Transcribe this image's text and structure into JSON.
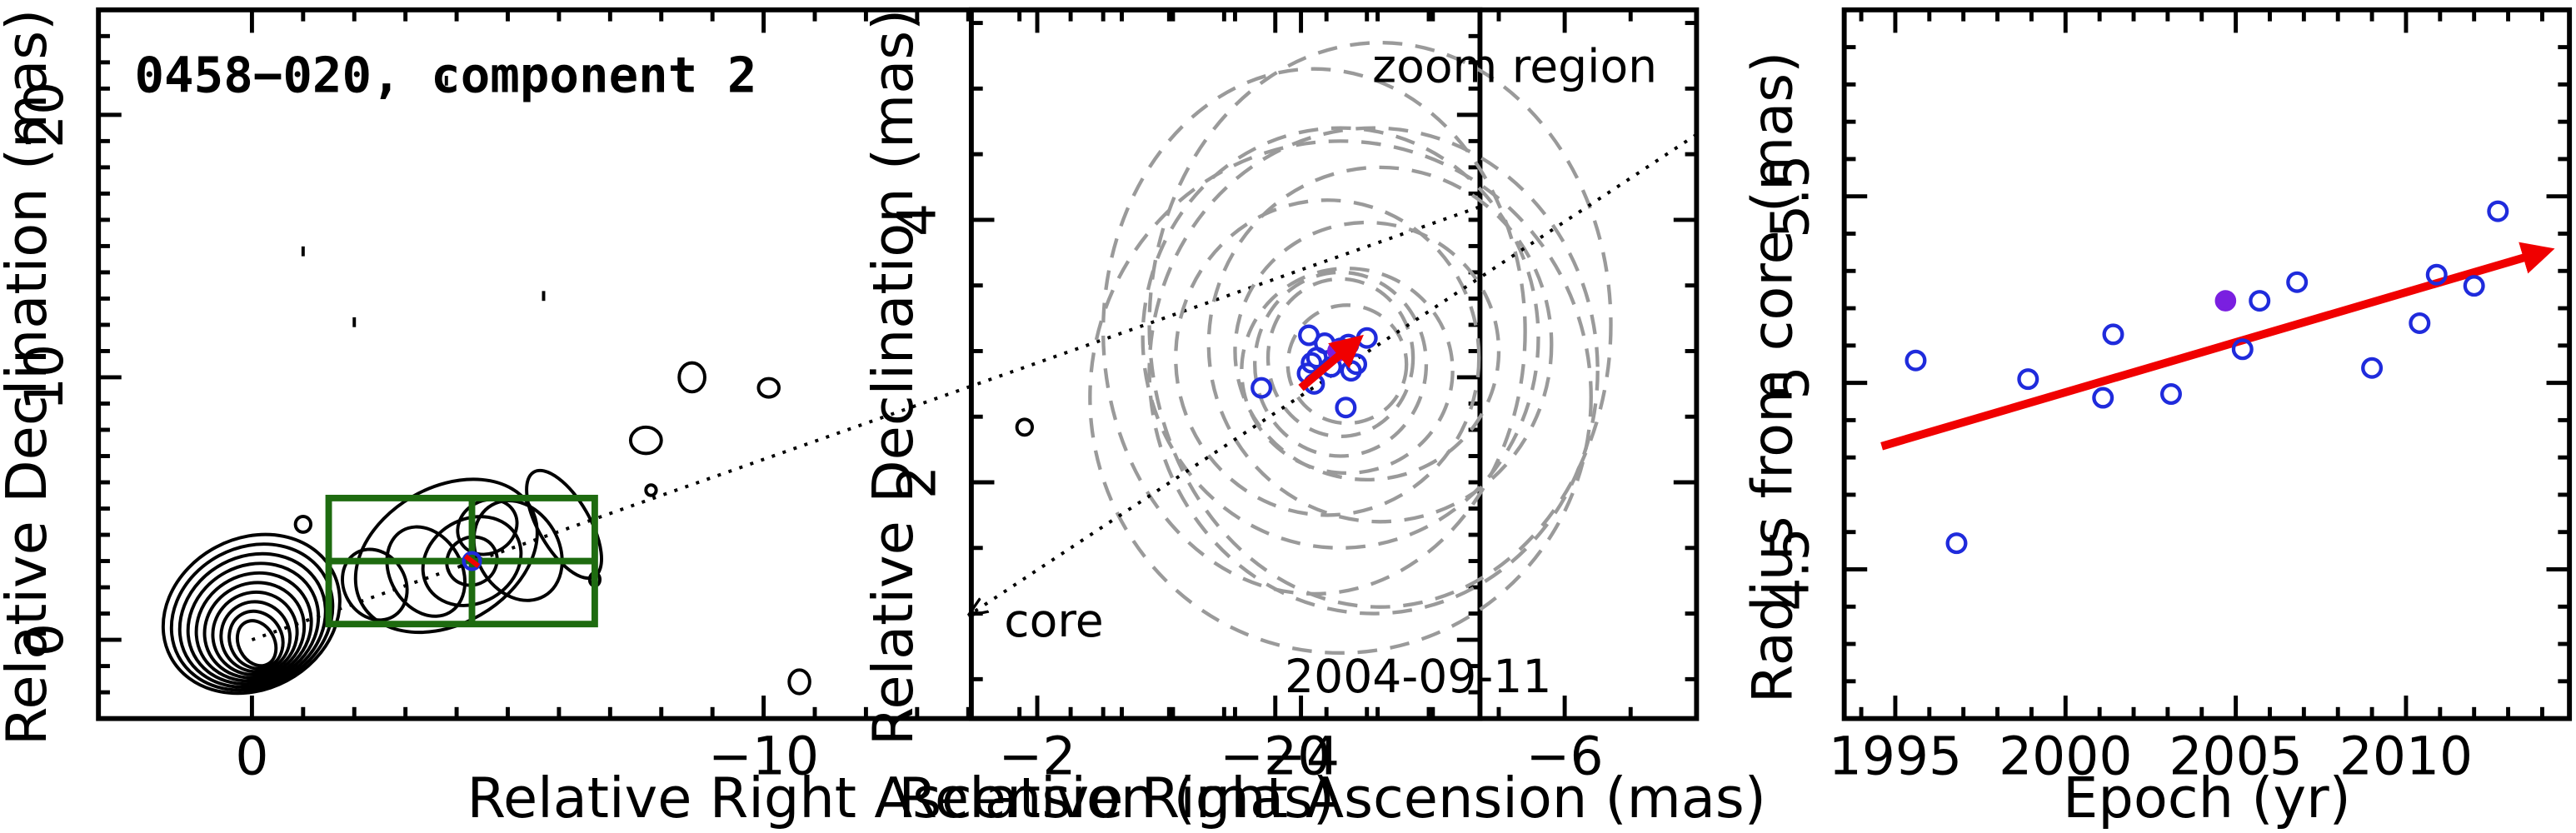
{
  "chart_data": [
    {
      "type": "contour",
      "title": "0458−020, component 2",
      "xlabel": "Relative Right Ascension (mas)",
      "ylabel": "Relative Declination (mas)",
      "xlim": [
        3,
        -24
      ],
      "ylim": [
        -3,
        24
      ],
      "xticks": [
        0,
        -10,
        -20
      ],
      "xtick_labels": [
        "0",
        "−10",
        "−20"
      ],
      "yticks": [
        0,
        10,
        20
      ],
      "ytick_labels": [
        "0",
        "10",
        "20"
      ],
      "annotation": "2004-09-11",
      "component_position": {
        "x": -4.3,
        "y": 3.0
      },
      "jet_direction_line": {
        "from": [
          0,
          0
        ],
        "to": [
          -24,
          16.5
        ]
      },
      "grid_boxes": [
        {
          "x": [
            -1.5,
            -6.7
          ],
          "y": [
            0.6,
            5.4
          ]
        },
        {
          "x": [
            -4.3,
            -4.3
          ],
          "y": [
            0.6,
            5.4
          ]
        },
        {
          "x": [
            -1.5,
            -6.7
          ],
          "y": [
            3.0,
            3.0
          ]
        }
      ],
      "colors": {
        "contours": "#000000",
        "boxes": "#1e6b10",
        "marker": "#1f2bdc",
        "vector": "#f00000"
      }
    },
    {
      "type": "scatter",
      "xlabel": "Relative Right Ascension (mas)",
      "ylabel": "Relative Declination (mas)",
      "xlim": [
        -1.5,
        -7.0
      ],
      "ylim": [
        0.2,
        5.6
      ],
      "xticks": [
        -2,
        -4,
        -6
      ],
      "xtick_labels": [
        "−2",
        "−4",
        "−6"
      ],
      "yticks": [
        2,
        4
      ],
      "ytick_labels": [
        "2",
        "4"
      ],
      "annotations": [
        "zoom region",
        "core"
      ],
      "points": [
        {
          "x": -3.7,
          "y": 2.72
        },
        {
          "x": -4.05,
          "y": 2.83
        },
        {
          "x": -4.08,
          "y": 2.91
        },
        {
          "x": -4.12,
          "y": 2.95
        },
        {
          "x": -4.06,
          "y": 3.12
        },
        {
          "x": -4.1,
          "y": 2.75
        },
        {
          "x": -4.18,
          "y": 3.06
        },
        {
          "x": -4.23,
          "y": 2.88
        },
        {
          "x": -4.3,
          "y": 3.02
        },
        {
          "x": -4.36,
          "y": 3.05
        },
        {
          "x": -4.38,
          "y": 2.85
        },
        {
          "x": -4.42,
          "y": 2.9
        },
        {
          "x": -4.34,
          "y": 2.57
        },
        {
          "x": -4.5,
          "y": 3.1
        }
      ],
      "highlight_point": {
        "x": -4.28,
        "y": 3.0
      },
      "motion_vector": {
        "from": [
          -4.0,
          2.72
        ],
        "to": [
          -4.4,
          3.06
        ]
      },
      "core_direction_line": {
        "from": [
          -7.0,
          4.65
        ],
        "to": [
          -1.5,
          1.0
        ]
      },
      "beam_ellipses": [
        {
          "cx": -4.35,
          "cy": 2.9,
          "rx": 0.45,
          "ry": 0.45
        },
        {
          "cx": -4.3,
          "cy": 2.95,
          "rx": 0.55,
          "ry": 0.6
        },
        {
          "cx": -4.3,
          "cy": 2.9,
          "rx": 0.65,
          "ry": 0.7
        },
        {
          "cx": -4.35,
          "cy": 2.85,
          "rx": 0.8,
          "ry": 0.78
        },
        {
          "cx": -4.5,
          "cy": 3.0,
          "rx": 1.0,
          "ry": 0.98
        },
        {
          "cx": -4.2,
          "cy": 2.95,
          "rx": 1.15,
          "ry": 1.2
        },
        {
          "cx": -4.6,
          "cy": 3.05,
          "rx": 1.3,
          "ry": 1.35
        },
        {
          "cx": -4.3,
          "cy": 3.1,
          "rx": 1.5,
          "ry": 1.6
        },
        {
          "cx": -4.55,
          "cy": 2.85,
          "rx": 1.7,
          "ry": 1.85
        },
        {
          "cx": -4.1,
          "cy": 3.15,
          "rx": 1.6,
          "ry": 2.0
        },
        {
          "cx": -4.6,
          "cy": 3.2,
          "rx": 1.75,
          "ry": 2.15
        },
        {
          "cx": -4.3,
          "cy": 2.65,
          "rx": 1.9,
          "ry": 1.95
        }
      ],
      "colors": {
        "points": "#1f2bdc",
        "highlight": "#7a1fe0",
        "beams": "#9a9a9a",
        "vector": "#f00000"
      }
    },
    {
      "type": "scatter",
      "xlabel": "Epoch (yr)",
      "ylabel": "Radius from core (mas)",
      "xlim": [
        1993.5,
        2014.8
      ],
      "ylim": [
        4.1,
        6.0
      ],
      "xticks": [
        1995,
        2000,
        2005,
        2010
      ],
      "xtick_labels": [
        "1995",
        "2000",
        "2005",
        "2010"
      ],
      "yticks": [
        4.5,
        5.0,
        5.5
      ],
      "ytick_labels": [
        "4.5",
        "5",
        "5.5"
      ],
      "points": [
        {
          "x": 1995.6,
          "y": 5.06
        },
        {
          "x": 1996.8,
          "y": 4.57
        },
        {
          "x": 1998.9,
          "y": 5.01
        },
        {
          "x": 2001.1,
          "y": 4.96
        },
        {
          "x": 2001.4,
          "y": 5.13
        },
        {
          "x": 2003.1,
          "y": 4.97
        },
        {
          "x": 2005.2,
          "y": 5.09
        },
        {
          "x": 2005.7,
          "y": 5.22
        },
        {
          "x": 2006.8,
          "y": 5.27
        },
        {
          "x": 2009.0,
          "y": 5.04
        },
        {
          "x": 2010.4,
          "y": 5.16
        },
        {
          "x": 2010.9,
          "y": 5.29
        },
        {
          "x": 2012.0,
          "y": 5.26
        },
        {
          "x": 2012.7,
          "y": 5.46
        }
      ],
      "highlight_point": {
        "x": 2004.7,
        "y": 5.22
      },
      "fit_line": {
        "from": [
          1994.6,
          4.83
        ],
        "to": [
          2014.0,
          5.35
        ]
      },
      "colors": {
        "points": "#1f2bdc",
        "highlight": "#7a1fe0",
        "fit": "#f00000"
      }
    }
  ]
}
